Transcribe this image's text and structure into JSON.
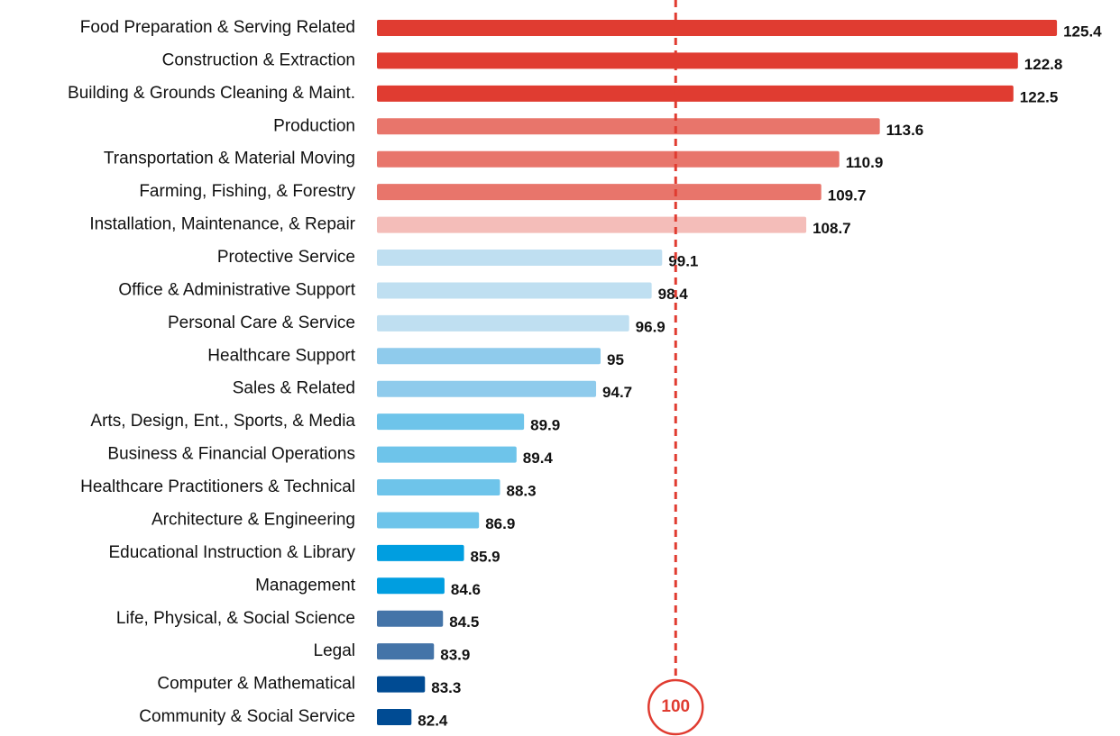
{
  "chart_data": {
    "type": "barh",
    "categories": [
      "Food Preparation & Serving Related",
      "Construction & Extraction",
      "Building & Grounds Cleaning & Maint.",
      "Production",
      "Transportation & Material Moving",
      "Farming, Fishing, & Forestry",
      "Installation, Maintenance, & Repair",
      "Protective Service",
      "Office & Administrative Support",
      "Personal Care & Service",
      "Healthcare Support",
      "Sales & Related",
      "Arts, Design, Ent., Sports, & Media",
      "Business & Financial Operations",
      "Healthcare Practitioners & Technical",
      "Architecture & Engineering",
      "Educational Instruction & Library",
      "Management",
      "Life, Physical, & Social Science",
      "Legal",
      "Computer & Mathematical",
      "Community & Social Service"
    ],
    "values": [
      125.4,
      122.8,
      122.5,
      113.6,
      110.9,
      109.7,
      108.7,
      99.1,
      98.4,
      96.9,
      95,
      94.7,
      89.9,
      89.4,
      88.3,
      86.9,
      85.9,
      84.6,
      84.5,
      83.9,
      83.3,
      82.4
    ],
    "colors": [
      "#e03c31",
      "#e03c31",
      "#e03c31",
      "#e8756b",
      "#e8756b",
      "#e8756b",
      "#f4bdb9",
      "#bfdff1",
      "#bfdff1",
      "#bfdff1",
      "#8fcbec",
      "#8fcbec",
      "#6ec4ea",
      "#6ec4ea",
      "#6ec4ea",
      "#6ec4ea",
      "#009ee0",
      "#009ee0",
      "#4474a8",
      "#4474a8",
      "#004b93",
      "#004b93"
    ],
    "xlim": [
      80.1,
      129.6
    ],
    "reference_line": 100,
    "reference_color": "#e03c31"
  }
}
